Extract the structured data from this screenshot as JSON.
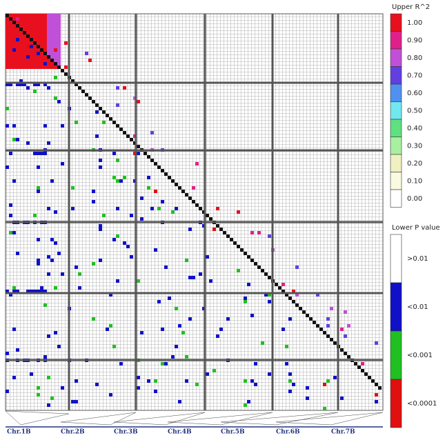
{
  "upper_legend": {
    "title": "Upper R^2",
    "entries": [
      {
        "label": "1.00",
        "color": "#e8101e"
      },
      {
        "label": "0.90",
        "color": "#e0208a"
      },
      {
        "label": "0.80",
        "color": "#c050d8"
      },
      {
        "label": "0.70",
        "color": "#6040e0"
      },
      {
        "label": "0.60",
        "color": "#5090f0"
      },
      {
        "label": "0.50",
        "color": "#70e8f0"
      },
      {
        "label": "0.40",
        "color": "#60e080"
      },
      {
        "label": "0.30",
        "color": "#a8f0a0"
      },
      {
        "label": "0.20",
        "color": "#f0f0c0"
      },
      {
        "label": "0.10",
        "color": "#fafae0"
      },
      {
        "label": "0.00",
        "color": "#ffffff"
      }
    ]
  },
  "lower_legend": {
    "title": "Lower P value",
    "entries": [
      {
        "label": ">0.01",
        "color": "#ffffff"
      },
      {
        "label": "<0.01",
        "color": "#1010c8"
      },
      {
        "label": "<0.001",
        "color": "#20c020"
      },
      {
        "label": "<0.0001",
        "color": "#e01010"
      }
    ]
  },
  "chromosomes": [
    "Chr.1B",
    "Chr.2B",
    "Chr.3B",
    "Chr.4B",
    "Chr.5B",
    "Chr.6B",
    "Chr.7B"
  ]
}
